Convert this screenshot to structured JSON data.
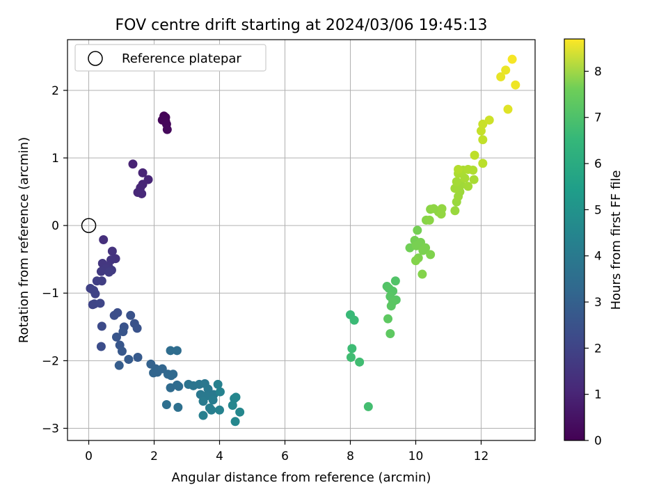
{
  "chart_data": {
    "type": "scatter",
    "title": "FOV centre drift starting at 2024/03/06 19:45:13",
    "xlabel": "Angular distance from reference (arcmin)",
    "ylabel": "Rotation from reference (arcmin)",
    "xlim": [
      -0.65,
      13.65
    ],
    "ylim": [
      -3.18,
      2.75
    ],
    "xticks": [
      0,
      2,
      4,
      6,
      8,
      10,
      12
    ],
    "yticks": [
      -3,
      -2,
      -1,
      0,
      1,
      2
    ],
    "grid": true,
    "legend": {
      "position": "top-left",
      "entries": [
        {
          "label": "Reference platepar",
          "marker": "open-circle"
        }
      ]
    },
    "reference_point": {
      "x": 0,
      "y": 0
    },
    "colorbar": {
      "label": "Hours from first FF file",
      "colormap": "viridis",
      "range": [
        0,
        8.7
      ],
      "ticks": [
        0,
        1,
        2,
        3,
        4,
        5,
        6,
        7,
        8
      ]
    },
    "series": [
      {
        "points": [
          {
            "x": 2.3,
            "y": 1.62,
            "c": 0.05
          },
          {
            "x": 2.35,
            "y": 1.6,
            "c": 0.08
          },
          {
            "x": 2.25,
            "y": 1.56,
            "c": 0.1
          },
          {
            "x": 2.35,
            "y": 1.54,
            "c": 0.12
          },
          {
            "x": 2.38,
            "y": 1.5,
            "c": 0.15
          },
          {
            "x": 2.4,
            "y": 1.42,
            "c": 0.2
          },
          {
            "x": 1.35,
            "y": 0.91,
            "c": 0.85
          },
          {
            "x": 1.65,
            "y": 0.78,
            "c": 0.88
          },
          {
            "x": 1.82,
            "y": 0.68,
            "c": 0.9
          },
          {
            "x": 1.65,
            "y": 0.61,
            "c": 0.92
          },
          {
            "x": 1.58,
            "y": 0.56,
            "c": 0.95
          },
          {
            "x": 1.5,
            "y": 0.49,
            "c": 0.97
          },
          {
            "x": 1.62,
            "y": 0.47,
            "c": 1.0
          },
          {
            "x": 0.45,
            "y": -0.21,
            "c": 1.2
          },
          {
            "x": 0.72,
            "y": -0.38,
            "c": 1.3
          },
          {
            "x": 0.82,
            "y": -0.49,
            "c": 1.3
          },
          {
            "x": 0.68,
            "y": -0.51,
            "c": 1.35
          },
          {
            "x": 0.42,
            "y": -0.56,
            "c": 1.4
          },
          {
            "x": 0.6,
            "y": -0.6,
            "c": 1.4
          },
          {
            "x": 0.52,
            "y": -0.64,
            "c": 1.45
          },
          {
            "x": 0.38,
            "y": -0.68,
            "c": 1.5
          },
          {
            "x": 0.7,
            "y": -0.66,
            "c": 1.5
          },
          {
            "x": 0.62,
            "y": -0.69,
            "c": 1.55
          },
          {
            "x": 0.4,
            "y": -0.82,
            "c": 1.6
          },
          {
            "x": 0.25,
            "y": -0.82,
            "c": 1.65
          },
          {
            "x": 0.05,
            "y": -0.93,
            "c": 1.7
          },
          {
            "x": 0.15,
            "y": -0.96,
            "c": 1.72
          },
          {
            "x": 0.2,
            "y": -1.01,
            "c": 1.75
          },
          {
            "x": 0.12,
            "y": -1.17,
            "c": 1.8
          },
          {
            "x": 0.17,
            "y": -1.16,
            "c": 1.82
          },
          {
            "x": 0.35,
            "y": -1.15,
            "c": 1.85
          },
          {
            "x": 0.4,
            "y": -1.49,
            "c": 2.0
          },
          {
            "x": 0.38,
            "y": -1.79,
            "c": 2.05
          },
          {
            "x": 0.88,
            "y": -1.29,
            "c": 2.1
          },
          {
            "x": 0.78,
            "y": -1.33,
            "c": 2.1
          },
          {
            "x": 1.28,
            "y": -1.33,
            "c": 2.2
          },
          {
            "x": 1.4,
            "y": -1.45,
            "c": 2.2
          },
          {
            "x": 1.48,
            "y": -1.52,
            "c": 2.25
          },
          {
            "x": 1.08,
            "y": -1.5,
            "c": 2.25
          },
          {
            "x": 1.05,
            "y": -1.57,
            "c": 2.3
          },
          {
            "x": 0.85,
            "y": -1.65,
            "c": 2.3
          },
          {
            "x": 0.95,
            "y": -1.77,
            "c": 2.35
          },
          {
            "x": 1.02,
            "y": -1.86,
            "c": 2.4
          },
          {
            "x": 1.5,
            "y": -1.95,
            "c": 2.45
          },
          {
            "x": 1.22,
            "y": -1.98,
            "c": 2.5
          },
          {
            "x": 0.93,
            "y": -2.07,
            "c": 2.55
          },
          {
            "x": 1.9,
            "y": -2.05,
            "c": 2.7
          },
          {
            "x": 2.05,
            "y": -2.12,
            "c": 2.75
          },
          {
            "x": 1.98,
            "y": -2.18,
            "c": 2.8
          },
          {
            "x": 2.1,
            "y": -2.17,
            "c": 2.8
          },
          {
            "x": 2.25,
            "y": -2.12,
            "c": 2.85
          },
          {
            "x": 2.42,
            "y": -2.2,
            "c": 2.9
          },
          {
            "x": 2.52,
            "y": -2.22,
            "c": 2.9
          },
          {
            "x": 2.58,
            "y": -2.2,
            "c": 2.95
          },
          {
            "x": 2.5,
            "y": -2.4,
            "c": 3.0
          },
          {
            "x": 2.7,
            "y": -2.36,
            "c": 3.0
          },
          {
            "x": 2.75,
            "y": -2.38,
            "c": 3.05
          },
          {
            "x": 2.5,
            "y": -1.85,
            "c": 3.1
          },
          {
            "x": 2.7,
            "y": -1.85,
            "c": 3.1
          },
          {
            "x": 2.38,
            "y": -2.65,
            "c": 3.15
          },
          {
            "x": 2.73,
            "y": -2.69,
            "c": 3.2
          },
          {
            "x": 3.05,
            "y": -2.35,
            "c": 3.3
          },
          {
            "x": 3.2,
            "y": -2.37,
            "c": 3.35
          },
          {
            "x": 3.38,
            "y": -2.35,
            "c": 3.4
          },
          {
            "x": 3.55,
            "y": -2.34,
            "c": 3.45
          },
          {
            "x": 3.65,
            "y": -2.42,
            "c": 3.5
          },
          {
            "x": 3.42,
            "y": -2.5,
            "c": 3.5
          },
          {
            "x": 3.6,
            "y": -2.52,
            "c": 3.55
          },
          {
            "x": 3.82,
            "y": -2.5,
            "c": 3.55
          },
          {
            "x": 3.5,
            "y": -2.6,
            "c": 3.6
          },
          {
            "x": 3.8,
            "y": -2.58,
            "c": 3.65
          },
          {
            "x": 3.7,
            "y": -2.7,
            "c": 3.7
          },
          {
            "x": 3.75,
            "y": -2.73,
            "c": 3.7
          },
          {
            "x": 3.5,
            "y": -2.81,
            "c": 3.75
          },
          {
            "x": 3.95,
            "y": -2.35,
            "c": 3.8
          },
          {
            "x": 4.02,
            "y": -2.46,
            "c": 3.85
          },
          {
            "x": 4.0,
            "y": -2.73,
            "c": 3.85
          },
          {
            "x": 4.45,
            "y": -2.56,
            "c": 3.95
          },
          {
            "x": 4.5,
            "y": -2.54,
            "c": 4.0
          },
          {
            "x": 4.4,
            "y": -2.66,
            "c": 4.0
          },
          {
            "x": 4.62,
            "y": -2.76,
            "c": 4.05
          },
          {
            "x": 4.48,
            "y": -2.9,
            "c": 4.05
          },
          {
            "x": 8.0,
            "y": -1.32,
            "c": 5.85
          },
          {
            "x": 8.12,
            "y": -1.4,
            "c": 5.9
          },
          {
            "x": 8.05,
            "y": -1.82,
            "c": 5.95
          },
          {
            "x": 8.02,
            "y": -1.95,
            "c": 6.0
          },
          {
            "x": 8.28,
            "y": -2.02,
            "c": 6.0
          },
          {
            "x": 8.55,
            "y": -2.68,
            "c": 6.05
          },
          {
            "x": 9.12,
            "y": -0.9,
            "c": 6.3
          },
          {
            "x": 9.38,
            "y": -0.82,
            "c": 6.3
          },
          {
            "x": 9.18,
            "y": -0.93,
            "c": 6.35
          },
          {
            "x": 9.3,
            "y": -0.97,
            "c": 6.35
          },
          {
            "x": 9.22,
            "y": -1.05,
            "c": 6.4
          },
          {
            "x": 9.4,
            "y": -1.1,
            "c": 6.4
          },
          {
            "x": 9.3,
            "y": -1.13,
            "c": 6.45
          },
          {
            "x": 9.25,
            "y": -1.19,
            "c": 6.45
          },
          {
            "x": 9.15,
            "y": -1.38,
            "c": 6.5
          },
          {
            "x": 9.22,
            "y": -1.6,
            "c": 6.5
          },
          {
            "x": 9.82,
            "y": -0.33,
            "c": 6.8
          },
          {
            "x": 10.05,
            "y": -0.07,
            "c": 6.85
          },
          {
            "x": 9.97,
            "y": -0.22,
            "c": 6.85
          },
          {
            "x": 10.02,
            "y": -0.3,
            "c": 6.9
          },
          {
            "x": 10.15,
            "y": -0.25,
            "c": 6.9
          },
          {
            "x": 10.3,
            "y": -0.33,
            "c": 6.95
          },
          {
            "x": 10.22,
            "y": -0.37,
            "c": 6.95
          },
          {
            "x": 10.45,
            "y": -0.43,
            "c": 7.0
          },
          {
            "x": 10.08,
            "y": -0.48,
            "c": 7.0
          },
          {
            "x": 10.0,
            "y": -0.52,
            "c": 7.05
          },
          {
            "x": 10.2,
            "y": -0.72,
            "c": 7.05
          },
          {
            "x": 10.32,
            "y": 0.08,
            "c": 7.1
          },
          {
            "x": 10.42,
            "y": 0.08,
            "c": 7.15
          },
          {
            "x": 10.45,
            "y": 0.24,
            "c": 7.15
          },
          {
            "x": 10.55,
            "y": 0.25,
            "c": 7.2
          },
          {
            "x": 10.7,
            "y": 0.2,
            "c": 7.2
          },
          {
            "x": 10.8,
            "y": 0.25,
            "c": 7.25
          },
          {
            "x": 10.78,
            "y": 0.17,
            "c": 7.25
          },
          {
            "x": 11.2,
            "y": 0.22,
            "c": 7.35
          },
          {
            "x": 11.25,
            "y": 0.35,
            "c": 7.35
          },
          {
            "x": 11.3,
            "y": 0.43,
            "c": 7.4
          },
          {
            "x": 11.35,
            "y": 0.5,
            "c": 7.4
          },
          {
            "x": 11.2,
            "y": 0.55,
            "c": 7.45
          },
          {
            "x": 11.38,
            "y": 0.6,
            "c": 7.45
          },
          {
            "x": 11.6,
            "y": 0.58,
            "c": 7.5
          },
          {
            "x": 11.25,
            "y": 0.65,
            "c": 7.5
          },
          {
            "x": 11.5,
            "y": 0.7,
            "c": 7.55
          },
          {
            "x": 11.78,
            "y": 0.68,
            "c": 7.55
          },
          {
            "x": 11.3,
            "y": 0.77,
            "c": 7.6
          },
          {
            "x": 11.45,
            "y": 0.82,
            "c": 7.6
          },
          {
            "x": 11.6,
            "y": 0.83,
            "c": 7.65
          },
          {
            "x": 11.75,
            "y": 0.82,
            "c": 7.65
          },
          {
            "x": 11.3,
            "y": 0.83,
            "c": 7.7
          },
          {
            "x": 12.05,
            "y": 0.92,
            "c": 7.8
          },
          {
            "x": 11.8,
            "y": 1.04,
            "c": 7.85
          },
          {
            "x": 12.05,
            "y": 1.27,
            "c": 7.9
          },
          {
            "x": 12.0,
            "y": 1.4,
            "c": 7.95
          },
          {
            "x": 12.05,
            "y": 1.5,
            "c": 8.0
          },
          {
            "x": 12.25,
            "y": 1.56,
            "c": 8.05
          },
          {
            "x": 12.82,
            "y": 1.72,
            "c": 8.3
          },
          {
            "x": 12.6,
            "y": 2.2,
            "c": 8.4
          },
          {
            "x": 12.75,
            "y": 2.3,
            "c": 8.45
          },
          {
            "x": 13.05,
            "y": 2.08,
            "c": 8.5
          },
          {
            "x": 12.95,
            "y": 2.46,
            "c": 8.6
          }
        ]
      }
    ]
  }
}
